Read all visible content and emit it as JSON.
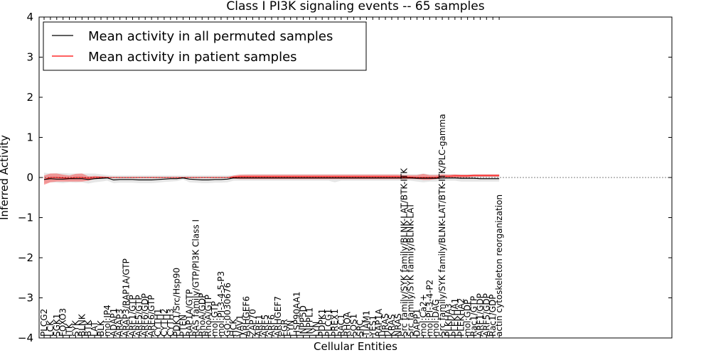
{
  "chart_data": {
    "type": "line",
    "title": "Class I PI3K signaling events -- 65 samples",
    "xlabel": "Cellular Entities",
    "ylabel": "Inferred Activity",
    "ylim": [
      -4,
      4
    ],
    "yticks": [
      -4,
      -3,
      -2,
      -1,
      0,
      1,
      2,
      3,
      4
    ],
    "ytick_labels": [
      "−4",
      "−3",
      "−2",
      "−1",
      "0",
      "1",
      "2",
      "3",
      "4"
    ],
    "grid": false,
    "legend_position": "top-left",
    "categories": [
      "PLCG2",
      "LCK",
      "SGK1",
      "FOXO3",
      "ITK",
      "SYK",
      "BLNK",
      "BTK",
      "LAT",
      "BLK",
      "mol:IP4",
      "ADAP1",
      "ARAP3",
      "ARAP3/RAP1A/GTP",
      "ARF1/GTP",
      "ARF5/GTP",
      "ARF6/GDP",
      "ARF6/GTP",
      "CYTH1",
      "CYTH2",
      "CYTH3",
      "PDK1/Src/Hsp90",
      "PTEN",
      "RAP1A/GTP",
      "RAS family/GTP/PI3K Class I",
      "RhoA/GDP",
      "RhoA/GTP",
      "mol:GTP",
      "mol:PI-3-4-5-P3",
      "GO:0030676",
      "HCK",
      "VAV1",
      "ARHGEF6",
      "ZAP70",
      "ARF1",
      "ARF5",
      "ARF6",
      "ARHGEF7",
      "FGR",
      "FYN",
      "HSP90AA1",
      "INPP5D",
      "INPPL1",
      "LYN",
      "PDPK1",
      "PLCG1",
      "PREX1",
      "RAC1",
      "RHOA",
      "SOS1",
      "SRC",
      "TIAM1",
      "YES1",
      "RAP1A",
      "HRAS",
      "KRAS",
      "NRAS",
      "Src family/SYK family/BLNK-LAT/BTK-ITK",
      "Src family/SYK family/BLNK-LAT",
      "DAPP1",
      "mol:Ca2+",
      "mol:PI-3-4-P2",
      "mol:DAG",
      "Src family/SYK family/BLNK-LAT/BTK-ITK/PLC-gamma",
      "PLKHA3",
      "PLEKHA1",
      "PLEKHA2",
      "mol:GDP",
      "Rac1/GTP",
      "ARF1/GDP",
      "ARF5/GDP",
      "Rac1/GDP",
      "actin cytoskeleton reorganization"
    ],
    "series": [
      {
        "name": "Mean activity in all permuted samples",
        "color": "#000000",
        "values": [
          -0.05,
          -0.03,
          -0.04,
          -0.04,
          -0.03,
          -0.03,
          -0.03,
          -0.05,
          -0.03,
          -0.02,
          -0.01,
          -0.06,
          -0.05,
          -0.05,
          -0.05,
          -0.06,
          -0.06,
          -0.06,
          -0.05,
          -0.04,
          -0.03,
          -0.03,
          -0.01,
          -0.04,
          -0.05,
          -0.06,
          -0.06,
          -0.05,
          -0.05,
          -0.04,
          -0.01,
          -0.01,
          -0.01,
          -0.01,
          -0.01,
          -0.01,
          -0.01,
          -0.01,
          -0.01,
          -0.01,
          -0.01,
          -0.01,
          -0.01,
          -0.01,
          -0.01,
          -0.01,
          -0.01,
          -0.01,
          -0.01,
          -0.01,
          -0.01,
          -0.01,
          -0.01,
          -0.01,
          -0.01,
          -0.01,
          -0.01,
          -0.01,
          -0.01,
          -0.02,
          -0.02,
          -0.02,
          -0.02,
          -0.01,
          -0.01,
          -0.01,
          -0.02,
          -0.02,
          -0.02,
          -0.03,
          -0.03,
          -0.03,
          -0.03
        ],
        "band_lower": [
          -0.15,
          -0.12,
          -0.13,
          -0.14,
          -0.12,
          -0.13,
          -0.12,
          -0.15,
          -0.12,
          -0.1,
          -0.08,
          -0.14,
          -0.13,
          -0.13,
          -0.13,
          -0.14,
          -0.14,
          -0.14,
          -0.13,
          -0.11,
          -0.1,
          -0.09,
          -0.05,
          -0.12,
          -0.13,
          -0.14,
          -0.14,
          -0.13,
          -0.13,
          -0.12,
          -0.08,
          -0.08,
          -0.08,
          -0.08,
          -0.08,
          -0.08,
          -0.08,
          -0.08,
          -0.08,
          -0.08,
          -0.08,
          -0.08,
          -0.08,
          -0.08,
          -0.08,
          -0.08,
          -0.12,
          -0.08,
          -0.08,
          -0.08,
          -0.08,
          -0.08,
          -0.08,
          -0.08,
          -0.08,
          -0.08,
          -0.08,
          -0.08,
          -0.08,
          -0.1,
          -0.12,
          -0.1,
          -0.1,
          -0.08,
          -0.08,
          -0.08,
          -0.1,
          -0.1,
          -0.1,
          -0.1,
          -0.1,
          -0.1,
          -0.1
        ],
        "band_upper": [
          0.12,
          0.1,
          0.11,
          0.11,
          0.1,
          0.1,
          0.1,
          0.1,
          0.1,
          0.08,
          0.06,
          0.05,
          0.05,
          0.05,
          0.05,
          0.05,
          0.05,
          0.05,
          0.05,
          0.05,
          0.05,
          0.05,
          0.05,
          0.05,
          0.05,
          0.05,
          0.05,
          0.05,
          0.05,
          0.05,
          0.06,
          0.07,
          0.08,
          0.08,
          0.08,
          0.08,
          0.08,
          0.08,
          0.08,
          0.08,
          0.08,
          0.08,
          0.08,
          0.08,
          0.08,
          0.08,
          0.08,
          0.08,
          0.08,
          0.08,
          0.08,
          0.08,
          0.08,
          0.08,
          0.08,
          0.08,
          0.08,
          0.08,
          0.08,
          0.08,
          0.1,
          0.08,
          0.08,
          0.08,
          0.08,
          0.08,
          0.08,
          0.08,
          0.08,
          0.08,
          0.08,
          0.08,
          0.08
        ]
      },
      {
        "name": "Mean activity in patient samples",
        "color": "#ff0000",
        "values": [
          -0.05,
          0.0,
          0.0,
          -0.01,
          -0.02,
          0.0,
          0.0,
          -0.02,
          0.0,
          0.0,
          0.0,
          0.0,
          0.0,
          0.0,
          0.0,
          0.0,
          0.0,
          0.0,
          0.0,
          0.0,
          0.0,
          0.0,
          0.0,
          0.0,
          0.0,
          0.0,
          0.0,
          0.0,
          0.0,
          0.0,
          0.01,
          0.02,
          0.02,
          0.02,
          0.02,
          0.02,
          0.02,
          0.02,
          0.02,
          0.02,
          0.02,
          0.02,
          0.02,
          0.02,
          0.02,
          0.02,
          0.02,
          0.02,
          0.02,
          0.02,
          0.02,
          0.02,
          0.02,
          0.02,
          0.02,
          0.02,
          0.02,
          0.01,
          0.01,
          0.0,
          0.0,
          0.0,
          0.0,
          0.03,
          0.03,
          0.04,
          0.04,
          0.04,
          0.05,
          0.05,
          0.05,
          0.05,
          0.05
        ],
        "band_lower": [
          -0.18,
          -0.12,
          -0.1,
          -0.1,
          -0.1,
          -0.1,
          -0.1,
          -0.08,
          -0.04,
          -0.02,
          0.0,
          0.0,
          0.0,
          0.0,
          0.0,
          0.0,
          0.0,
          0.0,
          0.0,
          0.0,
          0.0,
          0.0,
          0.0,
          0.0,
          0.0,
          0.0,
          0.0,
          0.0,
          0.0,
          0.0,
          -0.03,
          -0.04,
          -0.04,
          -0.04,
          -0.04,
          -0.04,
          -0.04,
          -0.04,
          -0.04,
          -0.04,
          -0.04,
          -0.04,
          -0.04,
          -0.04,
          -0.04,
          -0.04,
          -0.04,
          -0.04,
          -0.04,
          -0.04,
          -0.04,
          -0.04,
          -0.04,
          -0.04,
          -0.04,
          -0.04,
          -0.04,
          -0.04,
          -0.04,
          -0.04,
          -0.06,
          -0.06,
          -0.04,
          -0.02,
          -0.02,
          -0.01,
          0.0,
          0.0,
          0.02,
          0.02,
          0.02,
          0.02,
          0.02
        ],
        "band_upper": [
          0.05,
          0.1,
          0.1,
          0.07,
          0.05,
          0.09,
          0.1,
          0.03,
          0.04,
          0.03,
          0.02,
          0.0,
          0.0,
          0.0,
          0.0,
          0.0,
          0.0,
          0.0,
          0.0,
          0.0,
          0.0,
          0.0,
          0.0,
          0.0,
          0.0,
          0.0,
          0.0,
          0.0,
          0.0,
          0.0,
          0.05,
          0.07,
          0.07,
          0.07,
          0.07,
          0.07,
          0.07,
          0.07,
          0.07,
          0.07,
          0.07,
          0.07,
          0.07,
          0.07,
          0.07,
          0.07,
          0.07,
          0.07,
          0.07,
          0.07,
          0.07,
          0.07,
          0.07,
          0.07,
          0.07,
          0.07,
          0.07,
          0.06,
          0.06,
          0.06,
          0.09,
          0.06,
          0.06,
          0.08,
          0.07,
          0.08,
          0.07,
          0.07,
          0.08,
          0.08,
          0.08,
          0.08,
          0.08
        ]
      }
    ]
  }
}
